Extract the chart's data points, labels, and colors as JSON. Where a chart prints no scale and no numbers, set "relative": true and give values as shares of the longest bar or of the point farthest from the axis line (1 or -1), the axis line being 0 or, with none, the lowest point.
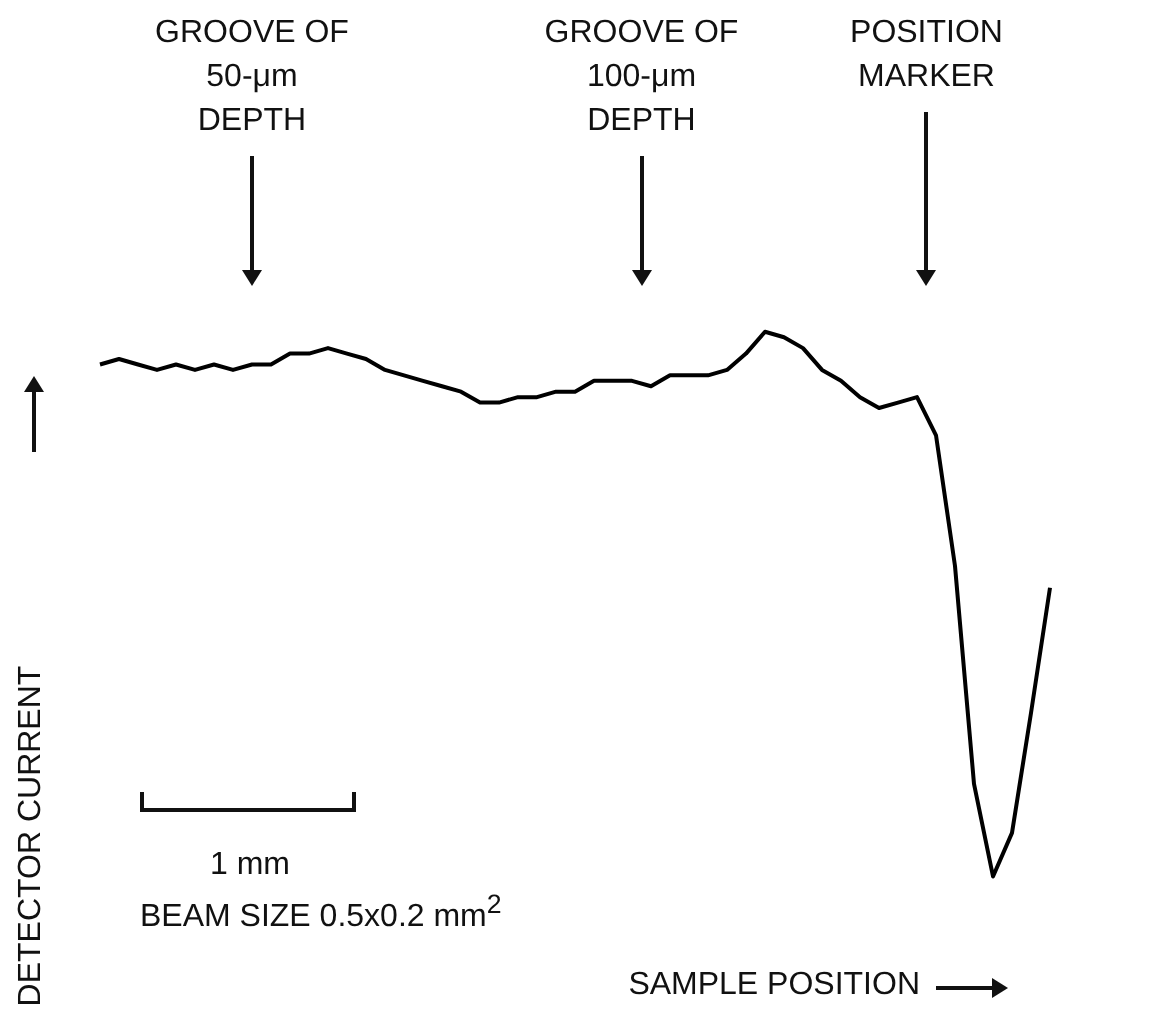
{
  "chart_data": {
    "type": "line",
    "relative": true,
    "xlabel": "SAMPLE POSITION",
    "ylabel": "DETECTOR CURRENT",
    "marker": "none",
    "line_style": "solid",
    "categories": [
      null,
      null,
      null,
      null,
      null,
      null,
      null,
      null,
      null,
      null,
      null,
      null,
      null,
      null,
      null,
      null,
      null,
      null,
      null,
      null,
      null,
      null,
      null,
      null,
      null,
      null,
      null,
      null,
      null,
      null,
      null,
      null,
      null,
      null,
      null,
      null,
      null,
      null,
      null,
      null,
      null,
      null,
      null,
      null,
      null,
      null,
      null,
      null,
      null,
      null,
      null
    ],
    "series": [
      {
        "color": "#000000",
        "values": [
          0.94,
          0.95,
          0.94,
          0.93,
          0.94,
          0.93,
          0.94,
          0.93,
          0.94,
          0.94,
          0.96,
          0.96,
          0.97,
          0.96,
          0.95,
          0.93,
          0.92,
          0.91,
          0.9,
          0.89,
          0.87,
          0.87,
          0.88,
          0.88,
          0.89,
          0.89,
          0.91,
          0.91,
          0.91,
          0.9,
          0.92,
          0.92,
          0.92,
          0.93,
          0.96,
          1,
          0.99,
          0.97,
          0.93,
          0.91,
          0.88,
          0.86,
          0.87,
          0.88,
          0.81,
          0.57,
          0.17,
          0,
          0.08,
          0.3,
          0.53
        ]
      }
    ],
    "annotations": [
      "GROOVE OF 50-μm DEPTH",
      "GROOVE OF 100-μm DEPTH",
      "POSITION MARKER",
      "1 mm",
      "BEAM SIZE 0.5x0.2 mm$^{2}$"
    ]
  }
}
